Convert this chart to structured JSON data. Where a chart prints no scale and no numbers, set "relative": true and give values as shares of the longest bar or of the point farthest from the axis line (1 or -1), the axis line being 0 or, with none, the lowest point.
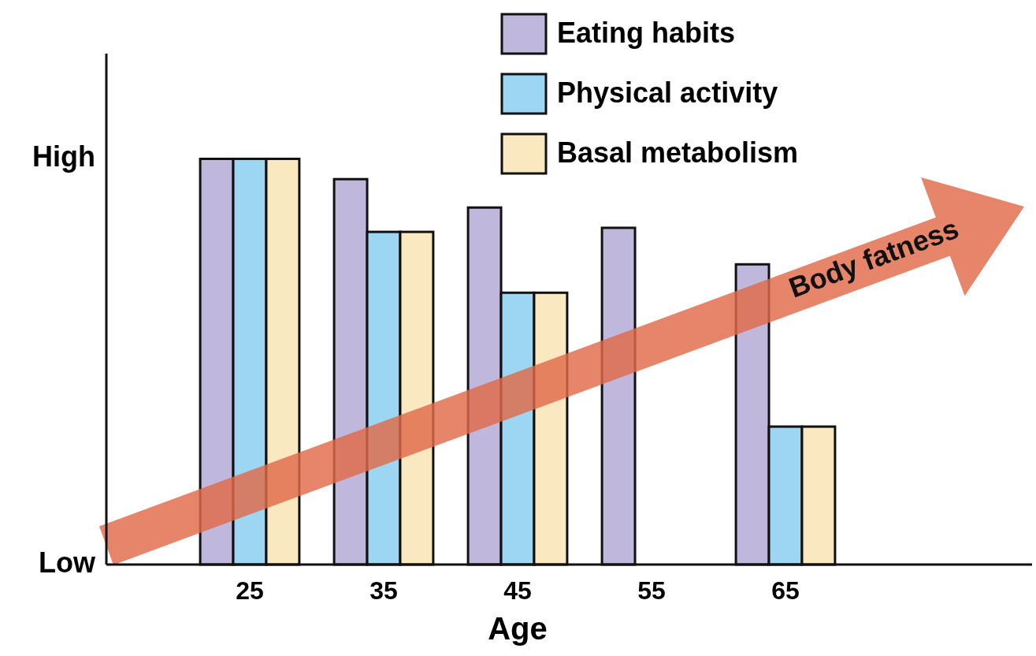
{
  "chart_data": {
    "type": "bar",
    "xlabel": "Age",
    "categories": [
      "25",
      "35",
      "45",
      "55",
      "65"
    ],
    "series": [
      {
        "name": "Eating habits",
        "color": "#c0b8dc",
        "values": [
          1.0,
          0.95,
          0.88,
          0.83,
          0.74
        ]
      },
      {
        "name": "Physical activity",
        "color": "#9dd6f2",
        "values": [
          1.0,
          0.82,
          0.67,
          null,
          0.34
        ]
      },
      {
        "name": "Basal metabolism",
        "color": "#fae8c0",
        "values": [
          1.0,
          0.82,
          0.67,
          null,
          0.34
        ]
      }
    ],
    "relative": true,
    "legend": "top right",
    "annotations": [
      "Body fatness",
      "High",
      "Low"
    ]
  }
}
